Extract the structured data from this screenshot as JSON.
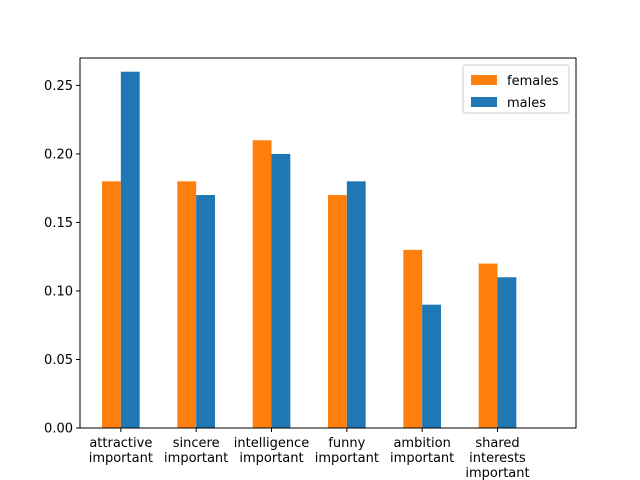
{
  "chart_data": {
    "type": "bar",
    "title": "",
    "xlabel": "",
    "ylabel": "",
    "categories": [
      [
        "attractive",
        "important"
      ],
      [
        "sincere",
        "important"
      ],
      [
        "intelligence",
        "important"
      ],
      [
        "funny",
        "important"
      ],
      [
        "ambition",
        "important"
      ],
      [
        "shared",
        "interests",
        "important"
      ]
    ],
    "series": [
      {
        "name": "females",
        "color": "#ff7f0e",
        "values": [
          0.18,
          0.18,
          0.21,
          0.17,
          0.13,
          0.12
        ]
      },
      {
        "name": "males",
        "color": "#1f77b4",
        "values": [
          0.26,
          0.17,
          0.2,
          0.18,
          0.09,
          0.11
        ]
      }
    ],
    "ylim": [
      0,
      0.27
    ],
    "yticks": [
      0.0,
      0.05,
      0.1,
      0.15,
      0.2,
      0.25
    ],
    "ytick_labels": [
      "0.00",
      "0.05",
      "0.10",
      "0.15",
      "0.20",
      "0.25"
    ],
    "legend": {
      "position": "top-right"
    },
    "grid": false
  }
}
